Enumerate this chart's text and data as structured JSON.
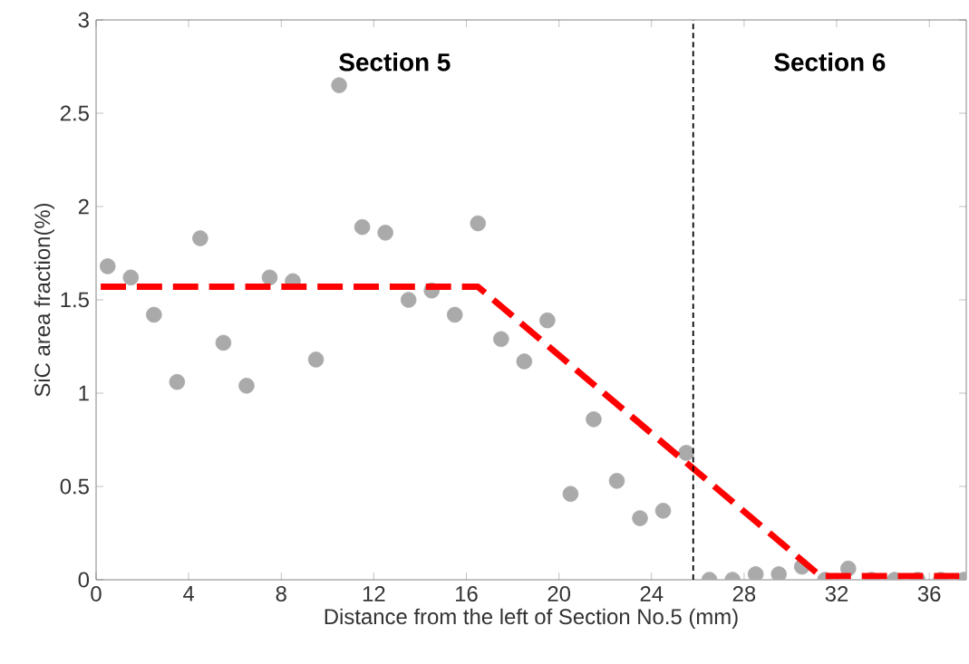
{
  "chart_data": {
    "type": "scatter",
    "xlabel": "Distance from the left of Section No.5 (mm)",
    "ylabel": "SiC area fraction(%)",
    "xlim": [
      0,
      37.6
    ],
    "ylim": [
      0,
      3
    ],
    "xticks": [
      0,
      4,
      8,
      12,
      16,
      20,
      24,
      28,
      32,
      36
    ],
    "yticks": [
      0,
      0.5,
      1,
      1.5,
      2,
      2.5,
      3
    ],
    "grid": false,
    "series": [
      {
        "color": "#aaaaaa",
        "marker": "circle",
        "x": [
          0.5,
          1.5,
          2.5,
          3.5,
          4.5,
          5.5,
          6.5,
          7.5,
          8.5,
          9.5,
          10.5,
          11.5,
          12.5,
          13.5,
          14.5,
          15.5,
          16.5,
          17.5,
          18.5,
          19.5,
          20.5,
          21.5,
          22.5,
          23.5,
          24.5,
          25.5,
          26.5,
          27.5,
          28.5,
          29.5,
          30.5,
          31.5,
          32.5,
          33.5,
          34.5,
          35.5,
          36.5,
          37.5
        ],
        "values": [
          1.68,
          1.62,
          1.42,
          1.06,
          1.83,
          1.27,
          1.04,
          1.62,
          1.6,
          1.18,
          2.65,
          1.89,
          1.86,
          1.5,
          1.55,
          1.42,
          1.91,
          1.29,
          1.17,
          1.39,
          0.46,
          0.86,
          0.53,
          0.33,
          0.37,
          0.68,
          0,
          0,
          0.03,
          0.03,
          0.07,
          0,
          0.06,
          0,
          0,
          0,
          0,
          0
        ]
      },
      {
        "type": "line",
        "color": "#ff0000",
        "line_style": "dashed",
        "marker": "none",
        "x": [
          0.2,
          16.5,
          31.3,
          37.6
        ],
        "values": [
          1.57,
          1.57,
          0.02,
          0.02
        ]
      }
    ],
    "ref_lines": [
      {
        "axis": "x",
        "value": 25.8,
        "color": "#000000",
        "line_style": "dashed"
      }
    ],
    "annotations": [
      "Section 5",
      "Section 6"
    ]
  }
}
